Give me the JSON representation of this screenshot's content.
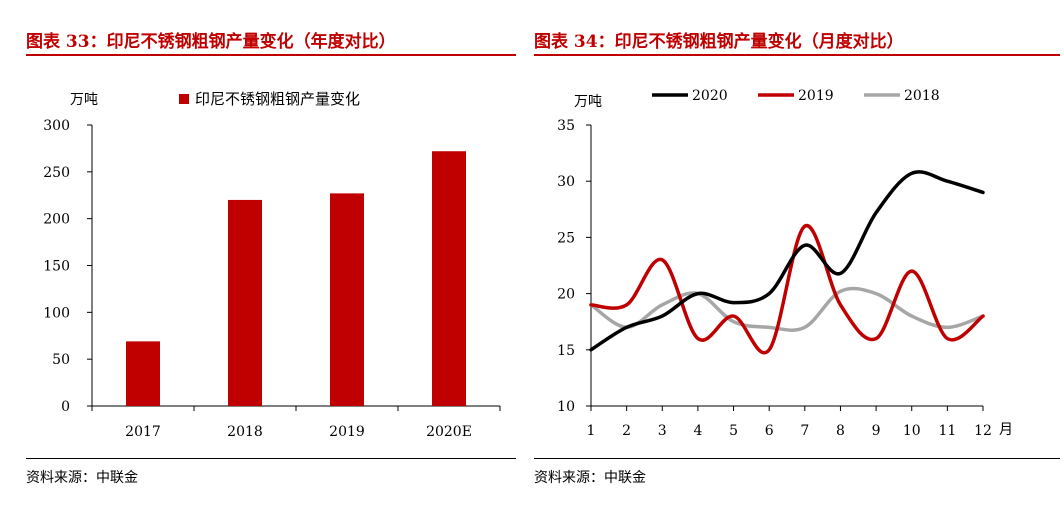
{
  "left": {
    "title": "图表 33：印尼不锈钢粗钢产量变化（年度对比）",
    "source": "资料来源：中联金",
    "chart_data": {
      "type": "bar",
      "ylabel": "万吨",
      "ylim": [
        0,
        300
      ],
      "yticks": [
        0,
        50,
        100,
        150,
        200,
        250,
        300
      ],
      "categories": [
        "2017",
        "2018",
        "2019",
        "2020E"
      ],
      "series": [
        {
          "name": "印尼不锈钢粗钢产量变化",
          "color": "#c00000",
          "values": [
            69,
            220,
            227,
            272
          ]
        }
      ],
      "legend_position": "top",
      "grid": false
    }
  },
  "right": {
    "title": "图表 34：印尼不锈钢粗钢产量变化（月度对比）",
    "source": "资料来源：中联金",
    "chart_data": {
      "type": "line",
      "ylabel": "万吨",
      "xlabel": "月",
      "ylim": [
        10,
        35
      ],
      "yticks": [
        10,
        15,
        20,
        25,
        30,
        35
      ],
      "x": [
        1,
        2,
        3,
        4,
        5,
        6,
        7,
        8,
        9,
        10,
        11,
        12
      ],
      "series": [
        {
          "name": "2020",
          "color": "#000000",
          "values": [
            15,
            17,
            18,
            20,
            19.2,
            20,
            24.3,
            21.8,
            27.2,
            30.7,
            30,
            29
          ]
        },
        {
          "name": "2019",
          "color": "#c00000",
          "values": [
            19,
            19,
            23,
            16,
            18,
            15,
            26,
            19,
            16,
            22,
            16,
            18
          ]
        },
        {
          "name": "2018",
          "color": "#a6a6a6",
          "values": [
            19,
            17,
            19,
            20,
            17.5,
            17,
            17,
            20.2,
            20,
            18,
            17,
            18
          ]
        }
      ],
      "legend_position": "top",
      "grid": false
    }
  }
}
